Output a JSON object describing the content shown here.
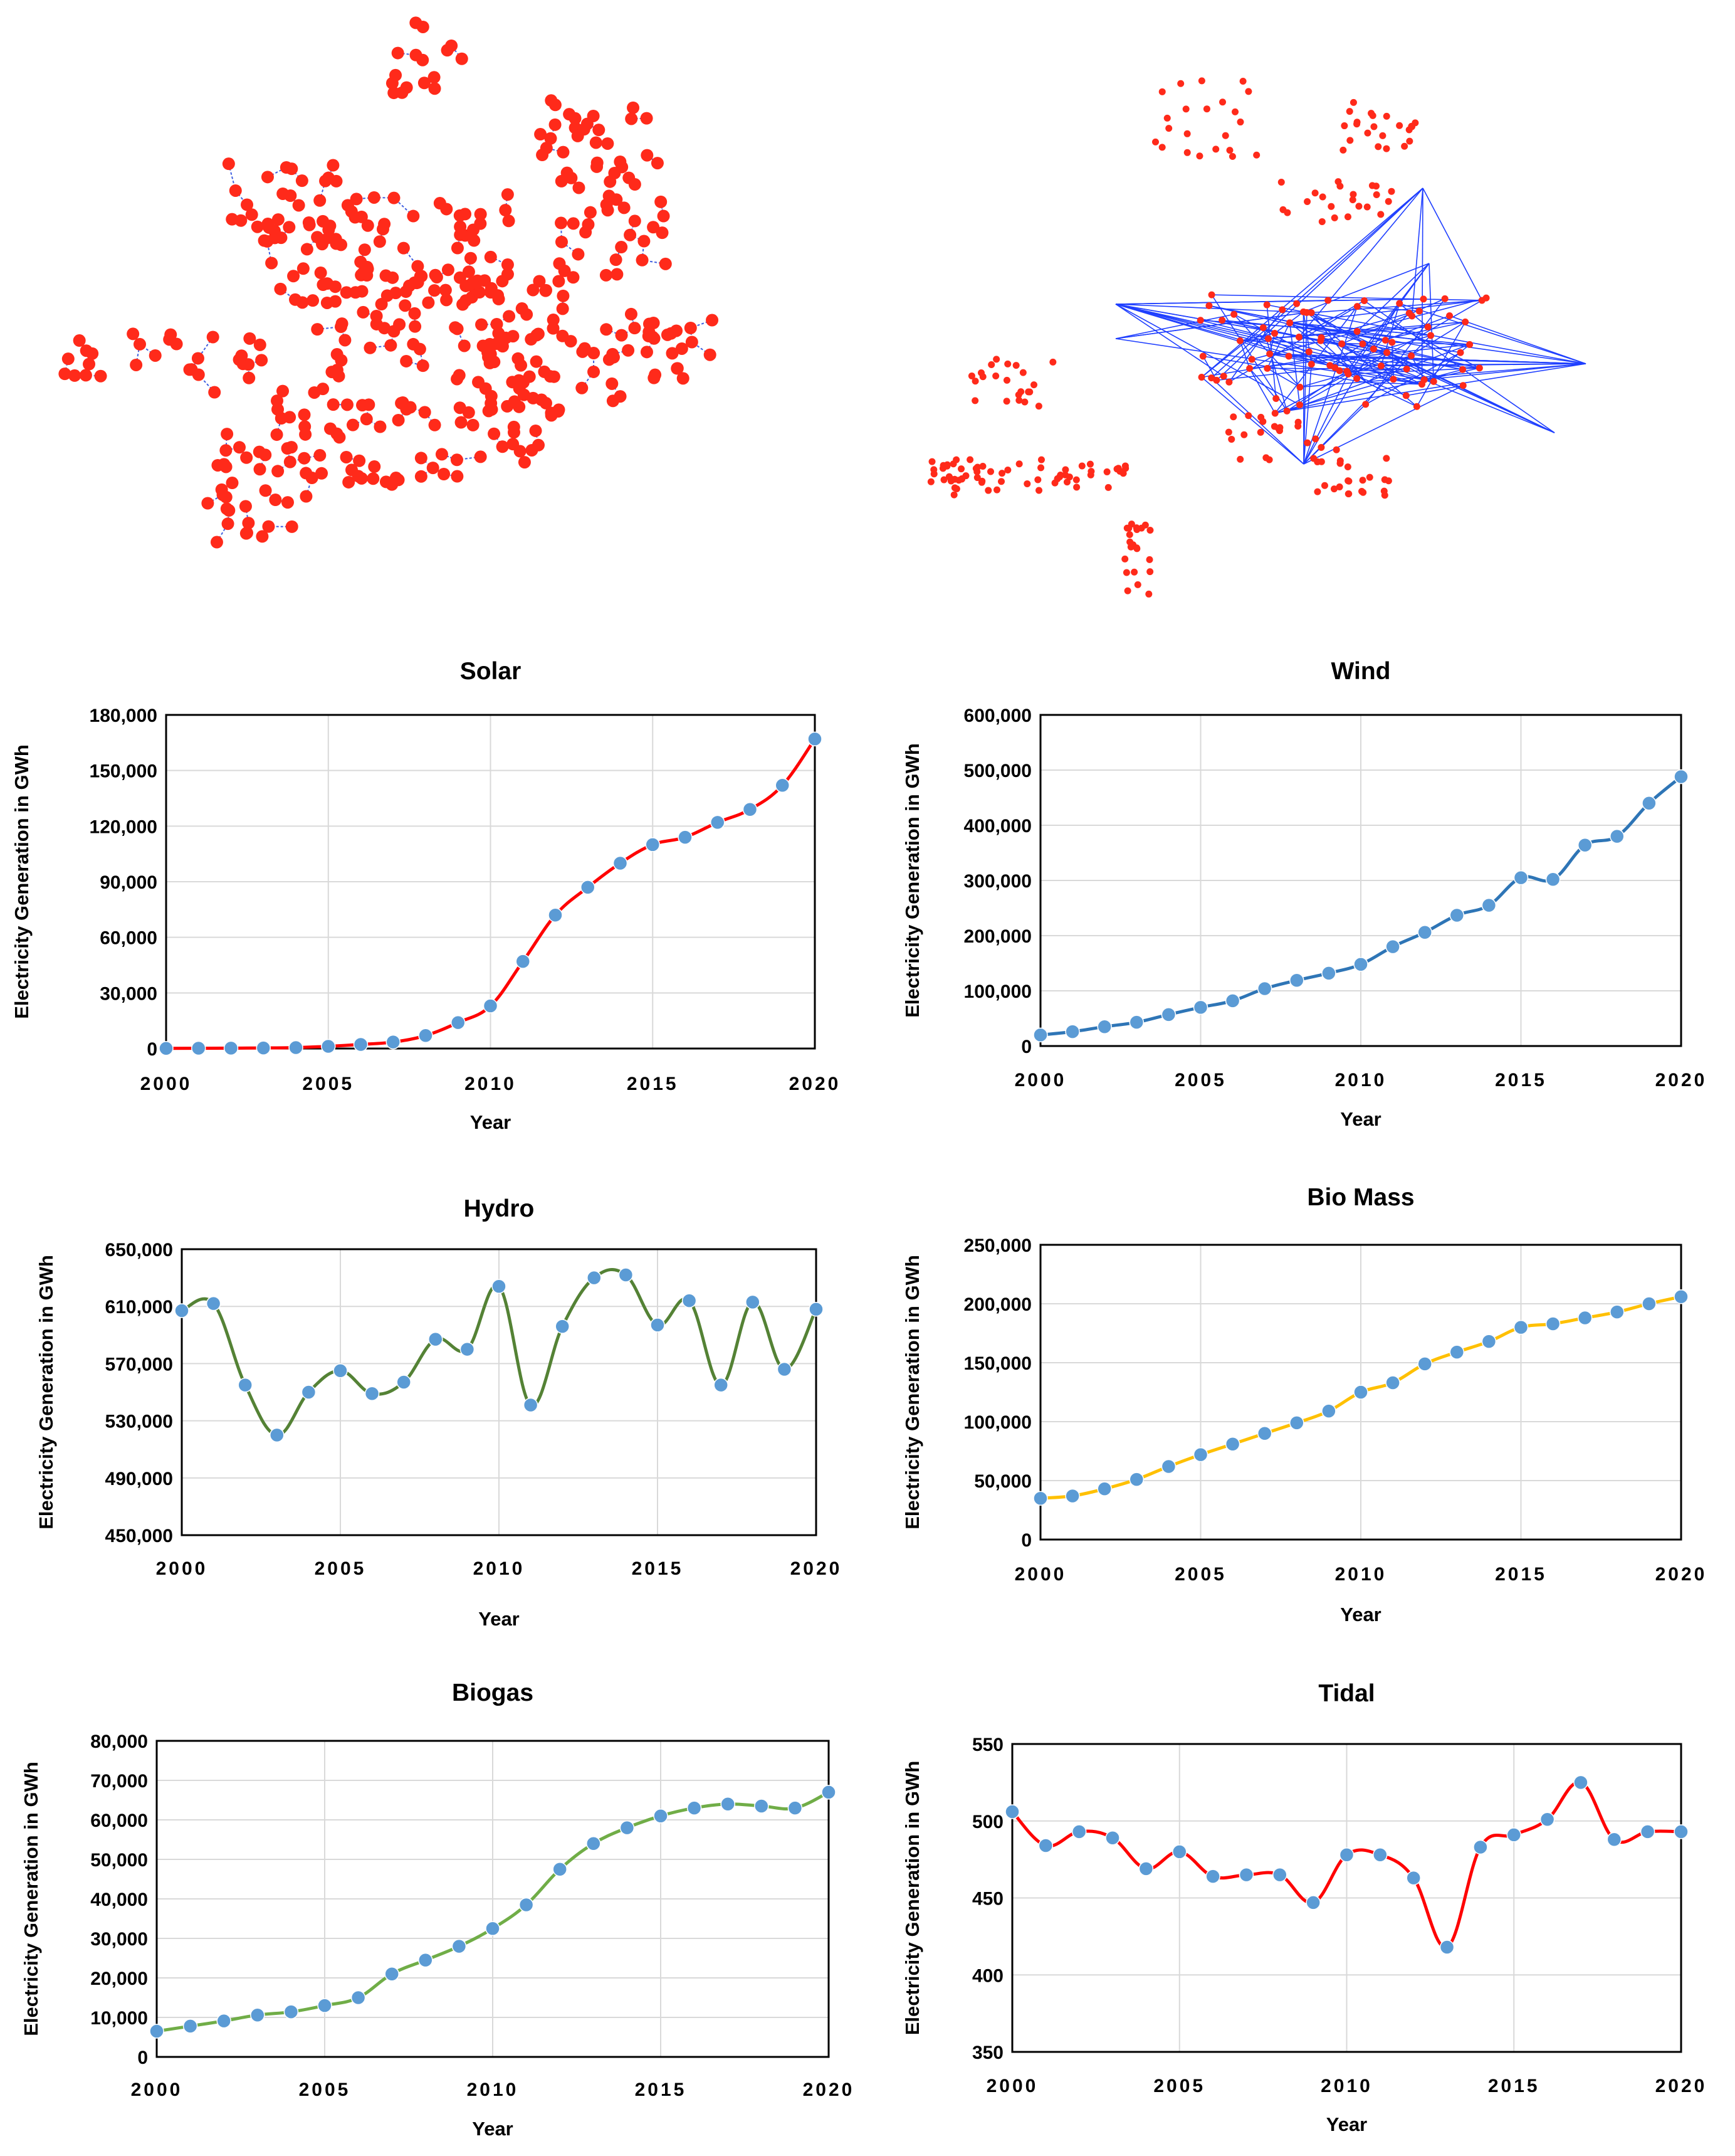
{
  "figure": {
    "network_panels": [
      {
        "name": "network-left",
        "description_colors": {
          "node": "#ff2a1a",
          "edge": "#3f5fe0"
        }
      },
      {
        "name": "network-right",
        "description_colors": {
          "node": "#ff2a1a",
          "edge": "#1f3fff"
        }
      }
    ]
  },
  "chart_data": [
    {
      "type": "line",
      "title": "Solar",
      "xlabel": "Year",
      "ylabel": "Electricity Generation in GWh",
      "x": [
        2000,
        2001,
        2002,
        2003,
        2004,
        2005,
        2006,
        2007,
        2008,
        2009,
        2010,
        2011,
        2012,
        2013,
        2014,
        2015,
        2016,
        2017,
        2018,
        2019,
        2020
      ],
      "values": [
        100,
        150,
        200,
        300,
        500,
        1200,
        2200,
        3500,
        7000,
        14000,
        23000,
        47000,
        72000,
        87000,
        100000,
        110000,
        114000,
        122000,
        129000,
        142000,
        167000
      ],
      "xticks": [
        "2000",
        "2005",
        "2010",
        "2015",
        "2020"
      ],
      "yticks": [
        "0",
        "30,000",
        "60,000",
        "90,000",
        "120,000",
        "150,000",
        "180,000"
      ],
      "ylim": [
        0,
        180000
      ],
      "line_color": "#ff0000",
      "marker_color": "#5b9bd5"
    },
    {
      "type": "line",
      "title": "Wind",
      "xlabel": "Year",
      "ylabel": "Electricity Generation in GWh",
      "x": [
        2000,
        2001,
        2002,
        2003,
        2004,
        2005,
        2006,
        2007,
        2008,
        2009,
        2010,
        2011,
        2012,
        2013,
        2014,
        2015,
        2016,
        2017,
        2018,
        2019,
        2020
      ],
      "values": [
        20000,
        26000,
        35000,
        43000,
        57000,
        70000,
        82000,
        104000,
        119000,
        132000,
        148000,
        180000,
        206000,
        237000,
        255000,
        305000,
        302000,
        364000,
        380000,
        440000,
        488000
      ],
      "xticks": [
        "2000",
        "2005",
        "2010",
        "2015",
        "2020"
      ],
      "yticks": [
        "0",
        "100,000",
        "200,000",
        "300,000",
        "400,000",
        "500,000",
        "600,000"
      ],
      "ylim": [
        0,
        600000
      ],
      "line_color": "#2e75b6",
      "marker_color": "#5b9bd5"
    },
    {
      "type": "line",
      "title": "Hydro",
      "xlabel": "Year",
      "ylabel": "Electricity Generation in GWh",
      "x": [
        2000,
        2001,
        2002,
        2003,
        2004,
        2005,
        2006,
        2007,
        2008,
        2009,
        2010,
        2011,
        2012,
        2013,
        2014,
        2015,
        2016,
        2017,
        2018,
        2019,
        2020
      ],
      "values": [
        607000,
        612000,
        555000,
        520000,
        550000,
        565000,
        549000,
        557000,
        587000,
        580000,
        624000,
        541000,
        596000,
        630000,
        632000,
        597000,
        614000,
        555000,
        613000,
        566000,
        608000
      ],
      "xticks": [
        "2000",
        "2005",
        "2010",
        "2015",
        "2020"
      ],
      "yticks": [
        "450,000",
        "490,000",
        "530,000",
        "570,000",
        "610,000",
        "650,000"
      ],
      "ylim": [
        450000,
        650000
      ],
      "line_color": "#548235",
      "marker_color": "#5b9bd5"
    },
    {
      "type": "line",
      "title": "Bio Mass",
      "xlabel": "Year",
      "ylabel": "Electricity Generation in GWh",
      "x": [
        2000,
        2001,
        2002,
        2003,
        2004,
        2005,
        2006,
        2007,
        2008,
        2009,
        2010,
        2011,
        2012,
        2013,
        2014,
        2015,
        2016,
        2017,
        2018,
        2019,
        2020
      ],
      "values": [
        35000,
        37000,
        43000,
        51000,
        62000,
        72000,
        81000,
        90000,
        99000,
        109000,
        125000,
        133000,
        149000,
        159000,
        168000,
        180000,
        183000,
        188000,
        193000,
        200000,
        206000
      ],
      "xticks": [
        "2000",
        "2005",
        "2010",
        "2015",
        "2020"
      ],
      "yticks": [
        "0",
        "50,000",
        "100,000",
        "150,000",
        "200,000",
        "250,000"
      ],
      "ylim": [
        0,
        250000
      ],
      "line_color": "#ffc000",
      "marker_color": "#5b9bd5"
    },
    {
      "type": "line",
      "title": "Biogas",
      "xlabel": "Year",
      "ylabel": "Electricity Generation in GWh",
      "x": [
        2000,
        2001,
        2002,
        2003,
        2004,
        2005,
        2006,
        2007,
        2008,
        2009,
        2010,
        2011,
        2012,
        2013,
        2014,
        2015,
        2016,
        2017,
        2018,
        2019,
        2020
      ],
      "values": [
        6500,
        7800,
        9100,
        10600,
        11400,
        13000,
        15000,
        21000,
        24500,
        28000,
        32500,
        38500,
        47500,
        54000,
        58000,
        61000,
        63000,
        64000,
        63500,
        63000,
        67000
      ],
      "xticks": [
        "2000",
        "2005",
        "2010",
        "2015",
        "2020"
      ],
      "yticks": [
        "0",
        "10,000",
        "20,000",
        "30,000",
        "40,000",
        "50,000",
        "60,000",
        "70,000",
        "80,000"
      ],
      "ylim": [
        0,
        80000
      ],
      "line_color": "#70ad47",
      "marker_color": "#5b9bd5"
    },
    {
      "type": "line",
      "title": "Tidal",
      "xlabel": "Year",
      "ylabel": "Electricity Generation in GWh",
      "x": [
        2000,
        2001,
        2002,
        2003,
        2004,
        2005,
        2006,
        2007,
        2008,
        2009,
        2010,
        2011,
        2012,
        2013,
        2014,
        2015,
        2016,
        2017,
        2018,
        2019,
        2020
      ],
      "values": [
        506,
        484,
        493,
        489,
        469,
        480,
        464,
        465,
        465,
        447,
        478,
        478,
        463,
        418,
        483,
        491,
        501,
        525,
        488,
        493,
        493
      ],
      "xticks": [
        "2000",
        "2005",
        "2010",
        "2015",
        "2020"
      ],
      "yticks": [
        "350",
        "400",
        "450",
        "500",
        "550"
      ],
      "ylim": [
        350,
        550
      ],
      "line_color": "#ff0000",
      "marker_color": "#5b9bd5"
    }
  ]
}
